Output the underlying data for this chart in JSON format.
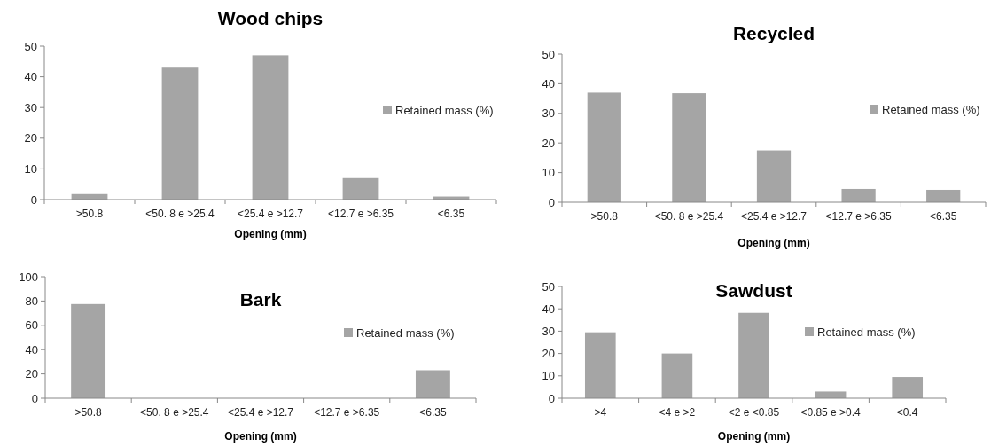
{
  "chart_data": [
    {
      "type": "bar",
      "title": "Wood chips",
      "xlabel": "Opening (mm)",
      "categories": [
        ">50.8",
        "<50. 8 e >25.4",
        "<25.4 e >12.7",
        "<12.7 e >6.35",
        "<6.35"
      ],
      "series": [
        {
          "name": "Retained mass (%)",
          "color": "#a5a5a5",
          "values": [
            1.8,
            43,
            47,
            7,
            1
          ]
        }
      ],
      "ylim": [
        0,
        50
      ],
      "yticks": [
        0,
        10,
        20,
        30,
        40,
        50
      ],
      "legend": "right"
    },
    {
      "type": "bar",
      "title": "Recycled",
      "xlabel": "Opening (mm)",
      "categories": [
        ">50.8",
        "<50. 8 e >25.4",
        "<25.4 e >12.7",
        "<12.7 e >6.35",
        "<6.35"
      ],
      "series": [
        {
          "name": "Retained mass (%)",
          "color": "#a5a5a5",
          "values": [
            37,
            36.8,
            17.5,
            4.5,
            4.2
          ]
        }
      ],
      "ylim": [
        0,
        50
      ],
      "yticks": [
        0,
        10,
        20,
        30,
        40,
        50
      ],
      "legend": "right"
    },
    {
      "type": "bar",
      "title": "Bark",
      "xlabel": "Opening (mm)",
      "categories": [
        ">50.8",
        "<50. 8 e >25.4",
        "<25.4 e >12.7",
        "<12.7 e >6.35",
        "<6.35"
      ],
      "series": [
        {
          "name": "Retained mass (%)",
          "color": "#a5a5a5",
          "values": [
            77.5,
            0,
            0,
            0,
            23
          ]
        }
      ],
      "ylim": [
        0,
        100
      ],
      "yticks": [
        0,
        20,
        40,
        60,
        80,
        100
      ],
      "legend": "right"
    },
    {
      "type": "bar",
      "title": "Sawdust",
      "xlabel": "Opening (mm)",
      "categories": [
        ">4",
        "<4 e >2",
        "<2 e <0.85",
        "<0.85 e >0.4",
        "<0.4"
      ],
      "series": [
        {
          "name": "Retained mass (%)",
          "color": "#a5a5a5",
          "values": [
            29.5,
            20,
            38.2,
            3,
            9.5
          ]
        }
      ],
      "ylim": [
        0,
        50
      ],
      "yticks": [
        0,
        10,
        20,
        30,
        40,
        50
      ],
      "legend": "right"
    }
  ]
}
